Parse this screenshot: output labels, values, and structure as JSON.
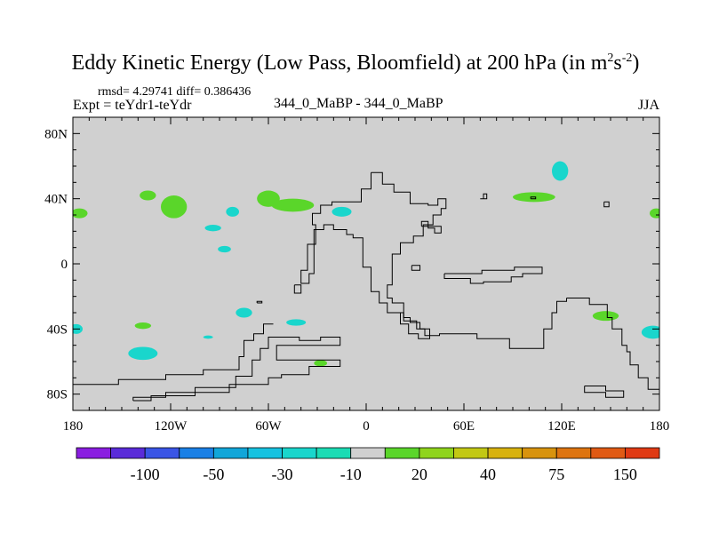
{
  "chart_data": {
    "type": "contour-map",
    "title": "Eddy Kinetic Energy (Low Pass, Bloomfield) at 200 hPa (in m",
    "title_units": {
      "sup1": "2",
      "mid": "s",
      "sup2": "-2",
      "end": ")"
    },
    "stats_label": "rmsd= 4.29741 diff= 0.386436",
    "left_label": "Expt = teYdr1-teYdr",
    "center_label": "344_0_MaBP - 344_0_MaBP",
    "right_label": "JJA",
    "x_range": [
      -180,
      180
    ],
    "y_range": [
      -90,
      90
    ],
    "x_ticks": [
      {
        "value": -180,
        "label": "180"
      },
      {
        "value": -120,
        "label": "120W"
      },
      {
        "value": -60,
        "label": "60W"
      },
      {
        "value": 0,
        "label": "0"
      },
      {
        "value": 60,
        "label": "60E"
      },
      {
        "value": 120,
        "label": "120E"
      },
      {
        "value": 180,
        "label": "180"
      }
    ],
    "y_ticks": [
      {
        "value": 80,
        "label": "80N"
      },
      {
        "value": 40,
        "label": "40N"
      },
      {
        "value": 0,
        "label": "0"
      },
      {
        "value": -40,
        "label": "40S"
      },
      {
        "value": -80,
        "label": "80S"
      }
    ],
    "background_color": "#d0d0d0",
    "colorbar": {
      "colors": [
        "#8a1ee0",
        "#5a2bd9",
        "#3a55e6",
        "#1a80e6",
        "#11a6d9",
        "#16c2e0",
        "#19d6cc",
        "#1bdcb4",
        "#d0d0d0",
        "#5ad62a",
        "#8fd41c",
        "#c2c814",
        "#d8b20f",
        "#d8930e",
        "#de7410",
        "#e05a14",
        "#e03a14"
      ],
      "labels": [
        {
          "after_box": 2,
          "text": "-100"
        },
        {
          "after_box": 4,
          "text": "-50"
        },
        {
          "after_box": 6,
          "text": "-30"
        },
        {
          "after_box": 8,
          "text": "-10"
        },
        {
          "after_box": 10,
          "text": "20"
        },
        {
          "after_box": 12,
          "text": "40"
        },
        {
          "after_box": 14,
          "text": "75"
        },
        {
          "after_box": 16,
          "text": "150"
        }
      ]
    },
    "anomaly_blobs": [
      {
        "lon": -176,
        "lat": 31,
        "rlon": 5,
        "rlat": 3,
        "color": "#5ad62a"
      },
      {
        "lon": -134,
        "lat": 42,
        "rlon": 5,
        "rlat": 3,
        "color": "#5ad62a"
      },
      {
        "lon": -118,
        "lat": 35,
        "rlon": 8,
        "rlat": 7,
        "color": "#5ad62a"
      },
      {
        "lon": -82,
        "lat": 32,
        "rlon": 4,
        "rlat": 3,
        "color": "#19d6cc"
      },
      {
        "lon": -94,
        "lat": 22,
        "rlon": 5,
        "rlat": 2,
        "color": "#19d6cc"
      },
      {
        "lon": -87,
        "lat": 9,
        "rlon": 4,
        "rlat": 2,
        "color": "#19d6cc"
      },
      {
        "lon": -60,
        "lat": 40,
        "rlon": 7,
        "rlat": 5,
        "color": "#5ad62a"
      },
      {
        "lon": -45,
        "lat": 36,
        "rlon": 13,
        "rlat": 4,
        "color": "#5ad62a"
      },
      {
        "lon": -15,
        "lat": 32,
        "rlon": 6,
        "rlat": 3,
        "color": "#19d6cc"
      },
      {
        "lon": -75,
        "lat": -30,
        "rlon": 5,
        "rlat": 3,
        "color": "#19d6cc"
      },
      {
        "lon": -43,
        "lat": -36,
        "rlon": 6,
        "rlat": 2,
        "color": "#19d6cc"
      },
      {
        "lon": -137,
        "lat": -38,
        "rlon": 5,
        "rlat": 2,
        "color": "#5ad62a"
      },
      {
        "lon": -178,
        "lat": -40,
        "rlon": 4,
        "rlat": 3,
        "color": "#19d6cc"
      },
      {
        "lon": -137,
        "lat": -55,
        "rlon": 9,
        "rlat": 4,
        "color": "#19d6cc"
      },
      {
        "lon": -97,
        "lat": -45,
        "rlon": 3,
        "rlat": 1,
        "color": "#19d6cc"
      },
      {
        "lon": -28,
        "lat": -61,
        "rlon": 4,
        "rlat": 2,
        "color": "#5ad62a"
      },
      {
        "lon": 103,
        "lat": 41,
        "rlon": 13,
        "rlat": 3,
        "color": "#5ad62a"
      },
      {
        "lon": 119,
        "lat": 57,
        "rlon": 5,
        "rlat": 6,
        "color": "#19d6cc"
      },
      {
        "lon": 147,
        "lat": -32,
        "rlon": 8,
        "rlat": 3,
        "color": "#5ad62a"
      },
      {
        "lon": 176,
        "lat": -42,
        "rlon": 7,
        "rlat": 4,
        "color": "#19d6cc"
      },
      {
        "lon": 178,
        "lat": 31,
        "rlon": 4,
        "rlat": 3,
        "color": "#5ad62a"
      }
    ],
    "coastlines": [
      [
        [
          3,
          56
        ],
        [
          10,
          56
        ],
        [
          10,
          49
        ],
        [
          17,
          49
        ],
        [
          17,
          44
        ],
        [
          27,
          44
        ],
        [
          27,
          37
        ],
        [
          38,
          37
        ],
        [
          38,
          36
        ],
        [
          44,
          36
        ],
        [
          44,
          40
        ],
        [
          49,
          40
        ],
        [
          49,
          34
        ],
        [
          46,
          34
        ],
        [
          46,
          30
        ],
        [
          41,
          30
        ],
        [
          41,
          24
        ],
        [
          35,
          24
        ],
        [
          35,
          17
        ],
        [
          29,
          17
        ],
        [
          29,
          13
        ],
        [
          21,
          13
        ],
        [
          21,
          6
        ],
        [
          16,
          6
        ],
        [
          16,
          -13
        ],
        [
          13,
          -13
        ],
        [
          13,
          -21
        ],
        [
          16,
          -21
        ],
        [
          16,
          -24
        ],
        [
          23,
          -24
        ],
        [
          23,
          -33
        ],
        [
          27,
          -33
        ],
        [
          27,
          -36
        ],
        [
          33,
          -36
        ],
        [
          33,
          -40
        ],
        [
          39,
          -40
        ],
        [
          39,
          -46
        ],
        [
          32,
          -46
        ],
        [
          32,
          -43
        ],
        [
          26,
          -43
        ],
        [
          26,
          -37
        ],
        [
          21,
          -37
        ],
        [
          21,
          -30
        ],
        [
          13,
          -30
        ],
        [
          13,
          -24
        ],
        [
          8,
          -24
        ],
        [
          8,
          -17
        ],
        [
          3,
          -17
        ],
        [
          3,
          -2
        ],
        [
          -2,
          -2
        ],
        [
          -2,
          16
        ],
        [
          -8,
          16
        ],
        [
          -8,
          18
        ],
        [
          -12,
          18
        ],
        [
          -12,
          21
        ],
        [
          -20,
          21
        ],
        [
          -20,
          24
        ],
        [
          -26,
          24
        ],
        [
          -26,
          21
        ],
        [
          -32,
          21
        ],
        [
          -32,
          -6
        ],
        [
          -35,
          -6
        ],
        [
          -35,
          -12
        ],
        [
          -40,
          -12
        ],
        [
          -40,
          -4
        ],
        [
          -36,
          -4
        ],
        [
          -36,
          12
        ],
        [
          -31,
          12
        ],
        [
          -31,
          24
        ],
        [
          -33,
          24
        ],
        [
          -33,
          31
        ],
        [
          -28,
          31
        ],
        [
          -28,
          36
        ],
        [
          -21,
          36
        ],
        [
          -21,
          38
        ],
        [
          -3,
          38
        ],
        [
          -3,
          46
        ],
        [
          3,
          46
        ],
        [
          3,
          56
        ]
      ],
      [
        [
          34,
          23
        ],
        [
          46,
          23
        ],
        [
          46,
          19
        ],
        [
          42,
          19
        ],
        [
          42,
          22
        ],
        [
          38,
          22
        ],
        [
          38,
          26
        ],
        [
          34,
          26
        ],
        [
          34,
          23
        ]
      ],
      [
        [
          28,
          -1
        ],
        [
          33,
          -1
        ],
        [
          33,
          -4
        ],
        [
          28,
          -4
        ],
        [
          28,
          -1
        ]
      ],
      [
        [
          -44,
          -13
        ],
        [
          -40,
          -13
        ],
        [
          -40,
          -18
        ],
        [
          -44,
          -18
        ],
        [
          -44,
          -13
        ]
      ],
      [
        [
          48,
          -6
        ],
        [
          48,
          -9
        ],
        [
          64,
          -9
        ],
        [
          64,
          -12
        ],
        [
          72,
          -12
        ],
        [
          72,
          -11
        ],
        [
          89,
          -11
        ],
        [
          89,
          -8
        ],
        [
          96,
          -8
        ],
        [
          96,
          -6
        ],
        [
          108,
          -6
        ],
        [
          108,
          -2
        ],
        [
          91,
          -2
        ],
        [
          91,
          -4
        ],
        [
          71,
          -4
        ],
        [
          71,
          -6
        ],
        [
          48,
          -6
        ]
      ],
      [
        [
          123,
          -21
        ],
        [
          123,
          -23
        ],
        [
          117,
          -23
        ],
        [
          117,
          -30
        ],
        [
          114,
          -30
        ],
        [
          114,
          -40
        ],
        [
          109,
          -40
        ],
        [
          109,
          -52
        ],
        [
          88,
          -52
        ],
        [
          88,
          -46
        ],
        [
          68,
          -46
        ],
        [
          68,
          -43
        ],
        [
          45,
          -43
        ],
        [
          45,
          -44
        ],
        [
          36,
          -44
        ],
        [
          36,
          -40
        ],
        [
          31,
          -40
        ],
        [
          31,
          -35
        ],
        [
          23,
          -35
        ],
        [
          23,
          -30
        ],
        [
          13,
          -30
        ]
      ],
      [
        [
          123,
          -21
        ],
        [
          137,
          -21
        ],
        [
          137,
          -25
        ],
        [
          148,
          -25
        ],
        [
          148,
          -33
        ],
        [
          151,
          -33
        ],
        [
          151,
          -40
        ],
        [
          157,
          -40
        ],
        [
          157,
          -50
        ],
        [
          160,
          -50
        ],
        [
          160,
          -54
        ],
        [
          162,
          -54
        ],
        [
          162,
          -62
        ],
        [
          167,
          -62
        ],
        [
          167,
          -70
        ],
        [
          173,
          -70
        ],
        [
          173,
          -77
        ],
        [
          180,
          -77
        ]
      ],
      [
        [
          134,
          -75
        ],
        [
          147,
          -75
        ],
        [
          147,
          -78
        ],
        [
          158,
          -78
        ],
        [
          158,
          -82
        ],
        [
          147,
          -82
        ],
        [
          147,
          -79
        ],
        [
          134,
          -79
        ],
        [
          134,
          -75
        ]
      ],
      [
        [
          -180,
          -74
        ],
        [
          -152,
          -74
        ],
        [
          -152,
          -71
        ],
        [
          -123,
          -71
        ],
        [
          -123,
          -68
        ],
        [
          -100,
          -68
        ],
        [
          -100,
          -65
        ],
        [
          -78,
          -65
        ],
        [
          -78,
          -57
        ],
        [
          -75,
          -57
        ],
        [
          -75,
          -47
        ],
        [
          -69,
          -47
        ],
        [
          -69,
          -43
        ],
        [
          -63,
          -43
        ],
        [
          -63,
          -37
        ],
        [
          -57,
          -37
        ]
      ],
      [
        [
          -143,
          -84
        ],
        [
          -132,
          -84
        ],
        [
          -132,
          -81
        ],
        [
          -105,
          -81
        ],
        [
          -105,
          -76
        ],
        [
          -80,
          -76
        ],
        [
          -80,
          -69
        ],
        [
          -70,
          -69
        ],
        [
          -70,
          -59
        ],
        [
          -65,
          -59
        ],
        [
          -65,
          -52
        ],
        [
          -60,
          -52
        ],
        [
          -60,
          -45
        ],
        [
          -41,
          -45
        ],
        [
          -41,
          -47
        ],
        [
          -28,
          -47
        ],
        [
          -28,
          -45
        ],
        [
          -16,
          -45
        ],
        [
          -16,
          -50
        ],
        [
          -55,
          -50
        ],
        [
          -55,
          -59
        ],
        [
          -16,
          -59
        ],
        [
          -16,
          -63
        ],
        [
          -35,
          -63
        ],
        [
          -35,
          -68
        ],
        [
          -52,
          -68
        ],
        [
          -52,
          -70
        ],
        [
          -60,
          -70
        ],
        [
          -60,
          -74
        ],
        [
          -84,
          -74
        ],
        [
          -84,
          -79
        ],
        [
          -123,
          -79
        ],
        [
          -123,
          -82
        ],
        [
          -143,
          -82
        ],
        [
          -143,
          -84
        ]
      ],
      [
        [
          -67,
          -24
        ],
        [
          -64,
          -24
        ],
        [
          -64,
          -23
        ],
        [
          -67,
          -23
        ],
        [
          -67,
          -24
        ]
      ],
      [
        [
          70,
          40
        ],
        [
          72,
          40
        ],
        [
          72,
          43
        ],
        [
          74,
          43
        ],
        [
          74,
          40
        ],
        [
          70,
          40
        ]
      ],
      [
        [
          101,
          40
        ],
        [
          104,
          40
        ],
        [
          104,
          41
        ],
        [
          101,
          41
        ],
        [
          101,
          40
        ]
      ],
      [
        [
          146,
          38
        ],
        [
          149,
          38
        ],
        [
          149,
          35
        ],
        [
          146,
          35
        ],
        [
          146,
          38
        ]
      ],
      [
        [
          -180,
          -90
        ],
        [
          180,
          -90
        ]
      ]
    ]
  }
}
